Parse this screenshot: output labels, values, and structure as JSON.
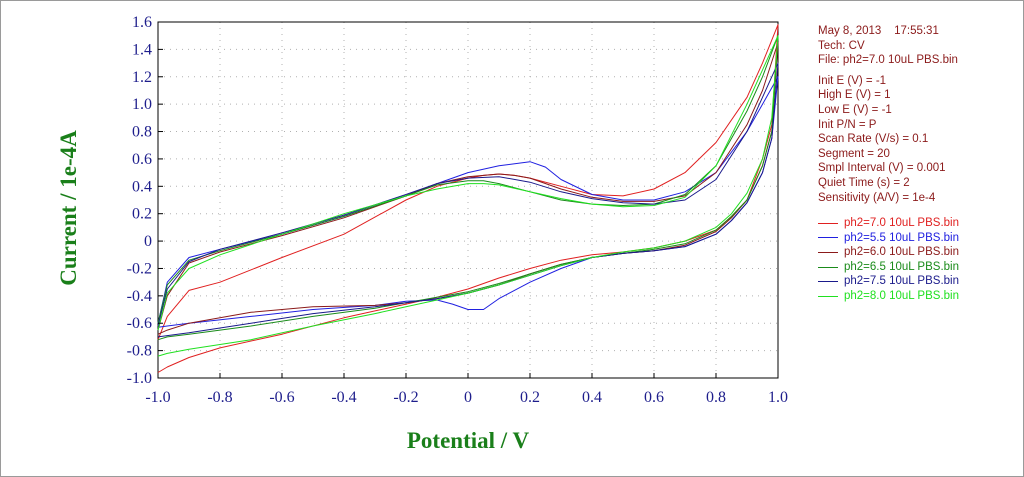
{
  "info": {
    "date": "May 8, 2013",
    "time": "17:55:31",
    "tech": "Tech: CV",
    "file": "File: ph2=7.0 10uL PBS.bin",
    "params": [
      "Init E (V) = -1",
      "High E (V) = 1",
      "Low E (V) = -1",
      "Init P/N = P",
      "Scan Rate (V/s) = 0.1",
      "Segment = 20",
      "Smpl Interval (V) = 0.001",
      "Quiet Time (s) = 2",
      "Sensitivity (A/V) = 1e-4"
    ]
  },
  "chart_data": {
    "type": "line",
    "xlabel": "Potential / V",
    "ylabel": "Current / 1e-4A",
    "xlim": [
      -1.0,
      1.0
    ],
    "ylim": [
      -1.0,
      1.6
    ],
    "xticks": [
      "-1.0",
      "-0.8",
      "-0.6",
      "-0.4",
      "-0.2",
      "0",
      "0.2",
      "0.4",
      "0.6",
      "0.8",
      "1.0"
    ],
    "yticks": [
      "-1.0",
      "-0.8",
      "-0.6",
      "-0.4",
      "-0.2",
      "0",
      "0.2",
      "0.4",
      "0.6",
      "0.8",
      "1.0",
      "1.2",
      "1.4",
      "1.6"
    ],
    "xtick_values": [
      -1.0,
      -0.8,
      -0.6,
      -0.4,
      -0.2,
      0,
      0.2,
      0.4,
      0.6,
      0.8,
      1.0
    ],
    "ytick_values": [
      -1.0,
      -0.8,
      -0.6,
      -0.4,
      -0.2,
      0,
      0.2,
      0.4,
      0.6,
      0.8,
      1.0,
      1.2,
      1.4,
      1.6
    ],
    "grid": true,
    "legend_position": "right",
    "series": [
      {
        "name": "ph2=7.0 10uL PBS.bin",
        "color": "#e02020",
        "x": [
          -1.0,
          -0.97,
          -0.9,
          -0.8,
          -0.6,
          -0.4,
          -0.2,
          -0.1,
          0.0,
          0.05,
          0.1,
          0.15,
          0.2,
          0.3,
          0.4,
          0.5,
          0.6,
          0.7,
          0.8,
          0.9,
          0.95,
          1.0,
          0.98,
          0.95,
          0.9,
          0.85,
          0.8,
          0.7,
          0.6,
          0.5,
          0.4,
          0.3,
          0.2,
          0.1,
          0.0,
          -0.1,
          -0.2,
          -0.3,
          -0.4,
          -0.6,
          -0.8,
          -0.9,
          -0.97,
          -1.0
        ],
        "y": [
          -0.72,
          -0.55,
          -0.36,
          -0.3,
          -0.12,
          0.05,
          0.3,
          0.4,
          0.46,
          0.48,
          0.49,
          0.48,
          0.46,
          0.4,
          0.34,
          0.33,
          0.38,
          0.5,
          0.72,
          1.05,
          1.3,
          1.58,
          0.85,
          0.6,
          0.3,
          0.18,
          0.08,
          0.0,
          -0.05,
          -0.08,
          -0.1,
          -0.14,
          -0.2,
          -0.27,
          -0.35,
          -0.41,
          -0.46,
          -0.51,
          -0.56,
          -0.68,
          -0.78,
          -0.85,
          -0.92,
          -0.96
        ]
      },
      {
        "name": "ph2=5.5 10uL PBS.bin",
        "color": "#2020e0",
        "x": [
          -1.0,
          -0.97,
          -0.9,
          -0.8,
          -0.6,
          -0.4,
          -0.2,
          -0.1,
          0.0,
          0.1,
          0.2,
          0.25,
          0.3,
          0.4,
          0.5,
          0.6,
          0.7,
          0.8,
          0.9,
          0.95,
          1.0,
          0.98,
          0.95,
          0.9,
          0.85,
          0.8,
          0.7,
          0.6,
          0.5,
          0.4,
          0.3,
          0.2,
          0.1,
          0.05,
          0.0,
          -0.05,
          -0.1,
          -0.2,
          -0.3,
          -0.5,
          -0.7,
          -0.9,
          -0.97,
          -1.0
        ],
        "y": [
          -0.6,
          -0.3,
          -0.12,
          -0.06,
          0.05,
          0.18,
          0.33,
          0.42,
          0.5,
          0.55,
          0.58,
          0.54,
          0.45,
          0.34,
          0.3,
          0.3,
          0.36,
          0.5,
          0.8,
          1.0,
          1.2,
          0.75,
          0.5,
          0.28,
          0.15,
          0.05,
          -0.04,
          -0.07,
          -0.09,
          -0.12,
          -0.2,
          -0.3,
          -0.42,
          -0.5,
          -0.5,
          -0.46,
          -0.43,
          -0.44,
          -0.47,
          -0.5,
          -0.55,
          -0.6,
          -0.62,
          -0.63
        ]
      },
      {
        "name": "ph2=6.0 10uL PBS.bin",
        "color": "#8b1a1a",
        "x": [
          -1.0,
          -0.97,
          -0.9,
          -0.8,
          -0.6,
          -0.4,
          -0.2,
          -0.1,
          0.0,
          0.1,
          0.15,
          0.2,
          0.3,
          0.4,
          0.5,
          0.6,
          0.7,
          0.8,
          0.9,
          0.95,
          1.0,
          0.98,
          0.95,
          0.9,
          0.85,
          0.8,
          0.7,
          0.6,
          0.5,
          0.4,
          0.3,
          0.2,
          0.1,
          0.0,
          -0.1,
          -0.2,
          -0.3,
          -0.5,
          -0.7,
          -0.9,
          -0.97,
          -1.0
        ],
        "y": [
          -0.65,
          -0.4,
          -0.16,
          -0.08,
          0.04,
          0.17,
          0.33,
          0.42,
          0.47,
          0.49,
          0.48,
          0.46,
          0.38,
          0.32,
          0.29,
          0.29,
          0.33,
          0.5,
          0.85,
          1.1,
          1.45,
          0.8,
          0.55,
          0.3,
          0.17,
          0.07,
          -0.03,
          -0.07,
          -0.09,
          -0.12,
          -0.17,
          -0.24,
          -0.32,
          -0.38,
          -0.42,
          -0.45,
          -0.47,
          -0.48,
          -0.52,
          -0.6,
          -0.65,
          -0.68
        ]
      },
      {
        "name": "ph2=6.5 10uL PBS.bin",
        "color": "#1a8b1a",
        "x": [
          -1.0,
          -0.97,
          -0.9,
          -0.8,
          -0.6,
          -0.4,
          -0.2,
          -0.1,
          0.0,
          0.05,
          0.1,
          0.2,
          0.3,
          0.4,
          0.5,
          0.6,
          0.7,
          0.8,
          0.9,
          0.95,
          1.0,
          0.98,
          0.95,
          0.9,
          0.85,
          0.8,
          0.7,
          0.6,
          0.5,
          0.4,
          0.3,
          0.2,
          0.1,
          0.0,
          -0.1,
          -0.2,
          -0.3,
          -0.5,
          -0.7,
          -0.9,
          -0.97,
          -1.0
        ],
        "y": [
          -0.6,
          -0.32,
          -0.14,
          -0.07,
          0.05,
          0.18,
          0.33,
          0.41,
          0.44,
          0.44,
          0.42,
          0.36,
          0.3,
          0.27,
          0.26,
          0.27,
          0.34,
          0.55,
          0.95,
          1.2,
          1.5,
          0.8,
          0.55,
          0.3,
          0.18,
          0.08,
          -0.02,
          -0.06,
          -0.09,
          -0.12,
          -0.17,
          -0.24,
          -0.31,
          -0.37,
          -0.41,
          -0.45,
          -0.49,
          -0.55,
          -0.62,
          -0.68,
          -0.7,
          -0.72
        ]
      },
      {
        "name": "ph2=7.5 10uL PBS.bin",
        "color": "#1a1a8b",
        "x": [
          -1.0,
          -0.97,
          -0.9,
          -0.8,
          -0.6,
          -0.4,
          -0.2,
          -0.1,
          0.0,
          0.1,
          0.2,
          0.3,
          0.4,
          0.5,
          0.6,
          0.7,
          0.8,
          0.9,
          0.95,
          1.0,
          0.98,
          0.95,
          0.9,
          0.85,
          0.8,
          0.7,
          0.6,
          0.5,
          0.4,
          0.3,
          0.2,
          0.1,
          0.0,
          -0.1,
          -0.2,
          -0.3,
          -0.5,
          -0.7,
          -0.9,
          -0.97,
          -1.0
        ],
        "y": [
          -0.62,
          -0.35,
          -0.15,
          -0.06,
          0.06,
          0.19,
          0.34,
          0.42,
          0.46,
          0.47,
          0.43,
          0.36,
          0.31,
          0.28,
          0.27,
          0.3,
          0.45,
          0.8,
          1.05,
          1.3,
          0.75,
          0.5,
          0.28,
          0.15,
          0.05,
          -0.04,
          -0.07,
          -0.09,
          -0.12,
          -0.18,
          -0.25,
          -0.32,
          -0.38,
          -0.42,
          -0.45,
          -0.48,
          -0.53,
          -0.6,
          -0.67,
          -0.69,
          -0.7
        ]
      },
      {
        "name": "ph2=8.0 10uL PBS.bin",
        "color": "#20e020",
        "x": [
          -1.0,
          -0.97,
          -0.9,
          -0.8,
          -0.6,
          -0.4,
          -0.2,
          -0.1,
          0.0,
          0.05,
          0.1,
          0.2,
          0.3,
          0.4,
          0.5,
          0.6,
          0.7,
          0.8,
          0.9,
          0.95,
          1.0,
          0.98,
          0.95,
          0.9,
          0.85,
          0.8,
          0.7,
          0.6,
          0.5,
          0.4,
          0.3,
          0.2,
          0.1,
          0.0,
          -0.1,
          -0.2,
          -0.3,
          -0.5,
          -0.7,
          -0.9,
          -0.97,
          -1.0
        ],
        "y": [
          -0.65,
          -0.38,
          -0.2,
          -0.1,
          0.05,
          0.2,
          0.33,
          0.38,
          0.42,
          0.42,
          0.41,
          0.36,
          0.31,
          0.27,
          0.25,
          0.26,
          0.32,
          0.55,
          1.0,
          1.25,
          1.5,
          0.9,
          0.6,
          0.35,
          0.2,
          0.1,
          0.0,
          -0.05,
          -0.08,
          -0.12,
          -0.18,
          -0.25,
          -0.32,
          -0.38,
          -0.43,
          -0.48,
          -0.53,
          -0.62,
          -0.72,
          -0.79,
          -0.82,
          -0.84
        ]
      }
    ]
  }
}
